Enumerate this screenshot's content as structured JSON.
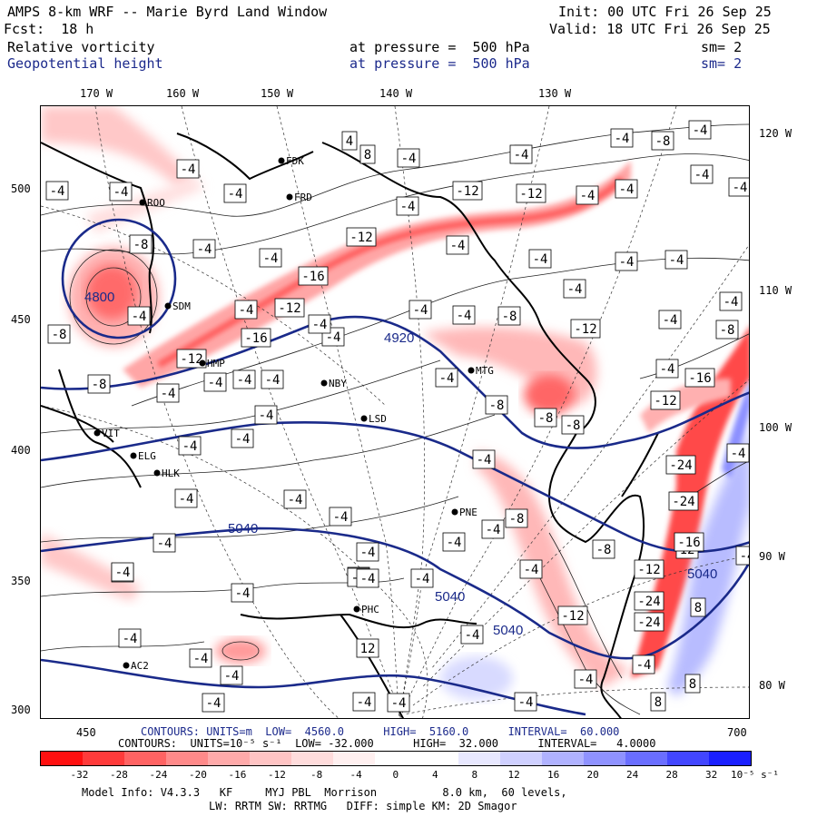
{
  "header": {
    "title": "AMPS 8-km WRF -- Marie Byrd Land Window",
    "init": "Init: 00 UTC Fri 26 Sep 25",
    "fcst": "Fcst:  18 h",
    "valid": "Valid: 18 UTC Fri 26 Sep 25",
    "field1": "Relative vorticity",
    "field1_level": "at pressure =  500 hPa",
    "field1_sm": "sm= 2",
    "field2": "Geopotential height",
    "field2_level": "at pressure =  500 hPa",
    "field2_sm": "sm= 2"
  },
  "axes": {
    "top_lon": [
      "170 W",
      "160 W",
      "150 W",
      "140 W",
      "130 W"
    ],
    "right_lon": [
      "120 W",
      "110 W",
      "100 W",
      "90 W",
      "80 W"
    ],
    "left_y": [
      "500",
      "450",
      "400",
      "350",
      "300"
    ],
    "bottom_x": [
      "450",
      "700"
    ]
  },
  "stations": [
    "ROO",
    "FDK",
    "FRD",
    "SDM",
    "HMP",
    "NBY",
    "LSD",
    "VIT",
    "ELG",
    "HLK",
    "PNE",
    "MTG",
    "PHC",
    "AC2"
  ],
  "map_labels": {
    "height_contours": [
      "4920",
      "5040",
      "5040",
      "5040",
      "5040",
      "4800"
    ],
    "vort_labels": [
      "-4",
      "-8",
      "-12",
      "-16",
      "-24",
      "4",
      "8",
      "12"
    ]
  },
  "contour_info": {
    "height_line": "CONTOURS: UNITS=m  LOW=  4560.0      HIGH=  5160.0      INTERVAL=  60.000",
    "vort_line": "CONTOURS:  UNITS=10⁻⁵ s⁻¹  LOW= -32.000      HIGH=  32.000      INTERVAL=   4.0000"
  },
  "colorbar": {
    "ticks": [
      "-32",
      "-28",
      "-24",
      "-20",
      "-16",
      "-12",
      "-8",
      "-4",
      "0",
      "4",
      "8",
      "12",
      "16",
      "20",
      "24",
      "28",
      "32"
    ],
    "unit": "10⁻⁵ s⁻¹",
    "colors": [
      "#ff1010",
      "#ff3b3b",
      "#ff6363",
      "#ff8a8a",
      "#ffaaaa",
      "#ffc4c4",
      "#ffdcdc",
      "#fff0f0",
      "#ffffff",
      "#ffffff",
      "#e8e8ff",
      "#cfd0ff",
      "#b0b2ff",
      "#8f92ff",
      "#6a6eff",
      "#4246ff",
      "#1a1fff"
    ]
  },
  "footer": {
    "line1": "Model Info: V4.3.3   KF     MYJ PBL  Morrison          8.0 km,  60 levels,",
    "line2": "LW: RRTM SW: RRTMG   DIFF: simple KM: 2D Smagor"
  }
}
